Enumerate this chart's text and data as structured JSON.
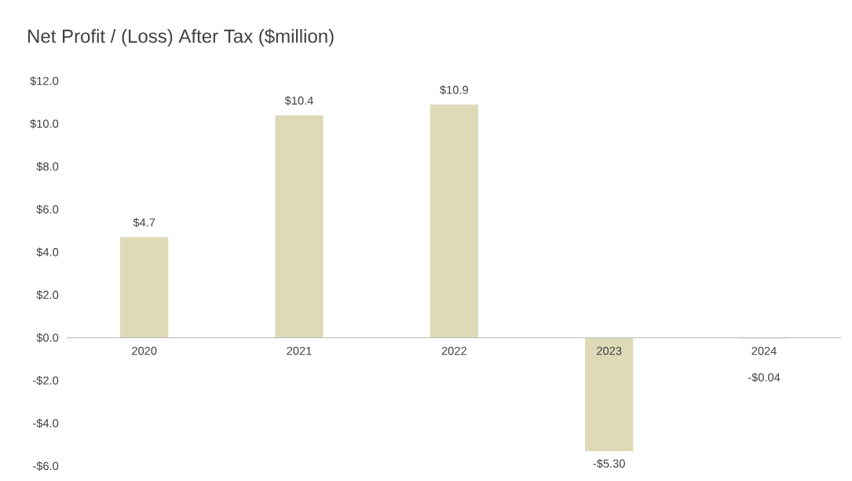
{
  "chart_data": {
    "type": "bar",
    "title": "Net Profit / (Loss) After Tax ($million)",
    "categories": [
      "2020",
      "2021",
      "2022",
      "2023",
      "2024"
    ],
    "values": [
      4.7,
      10.4,
      10.9,
      -5.3,
      -0.04
    ],
    "value_labels": [
      "$4.7",
      "$10.4",
      "$10.9",
      "-$5.30",
      "-$0.04"
    ],
    "color": "#dedab8",
    "ylim": [
      -6,
      12
    ],
    "yticks": [
      {
        "value": -6,
        "label": "-$6.0"
      },
      {
        "value": -4,
        "label": "-$4.0"
      },
      {
        "value": -2,
        "label": "-$2.0"
      },
      {
        "value": 0,
        "label": "$0.0"
      },
      {
        "value": 2,
        "label": "$2.0"
      },
      {
        "value": 4,
        "label": "$4.0"
      },
      {
        "value": 6,
        "label": "$6.0"
      },
      {
        "value": 8,
        "label": "$8.0"
      },
      {
        "value": 10,
        "label": "$10.0"
      },
      {
        "value": 12,
        "label": "$12.0"
      }
    ]
  }
}
